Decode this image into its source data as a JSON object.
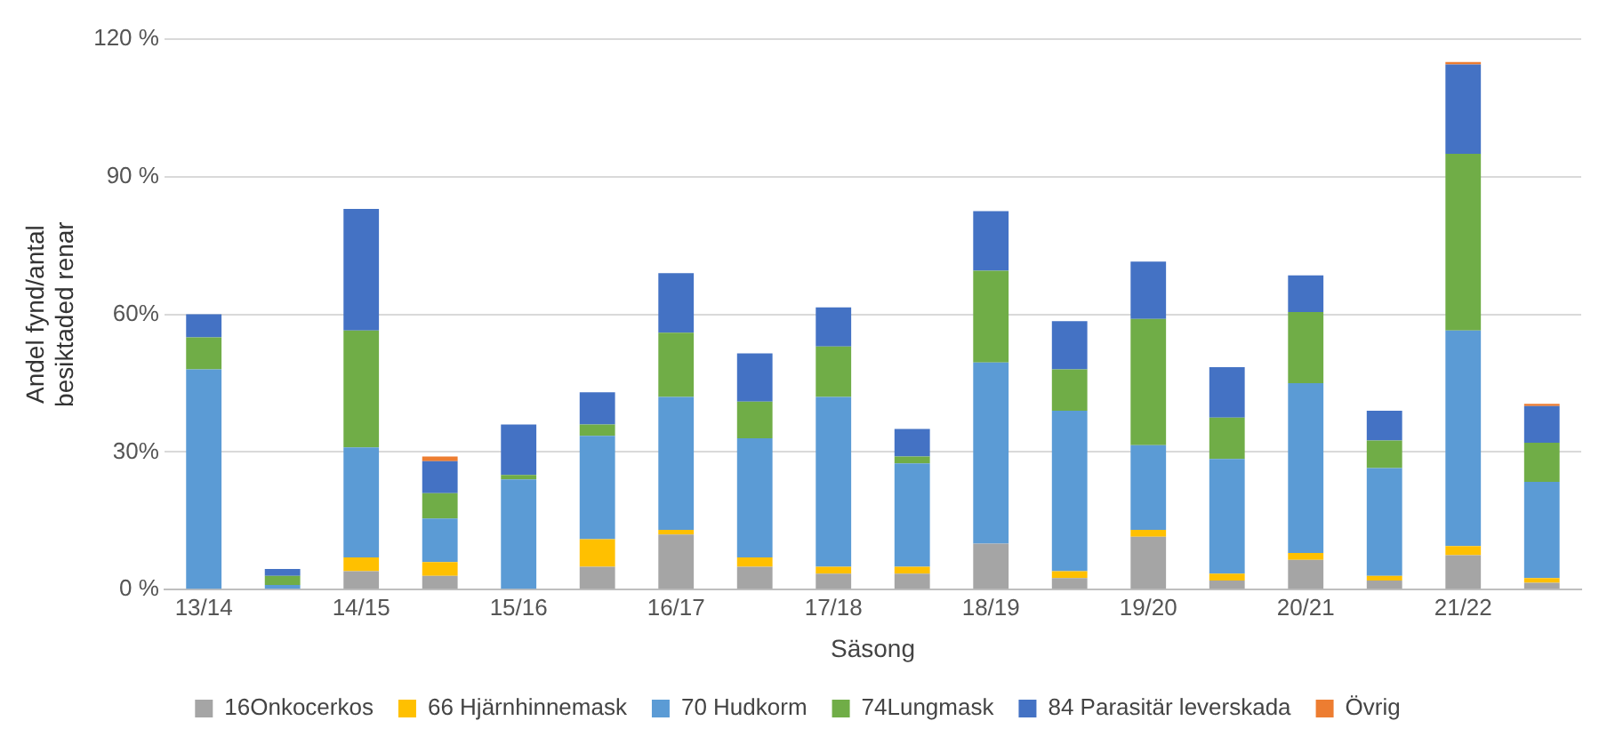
{
  "chart_data": {
    "type": "bar",
    "stacked": true,
    "xlabel": "Säsong",
    "ylabel": "Andel fynd/antal\nbesiktaded renar",
    "categories": [
      "13/14",
      null,
      "14/15",
      null,
      "15/16",
      null,
      "16/17",
      null,
      "17/18",
      null,
      "18/19",
      null,
      "19/20",
      null,
      "20/21",
      null,
      "21/22",
      null
    ],
    "ylim": [
      0,
      120
    ],
    "yticks": [
      {
        "value": 0,
        "label": "0 %"
      },
      {
        "value": 30,
        "label": "30%"
      },
      {
        "value": 60,
        "label": "60%"
      },
      {
        "value": 90,
        "label": "90 %"
      },
      {
        "value": 120,
        "label": "120 %"
      }
    ],
    "grid": "y",
    "legend": "bottom",
    "series": [
      {
        "name": "16Onkocerkos",
        "color": "#a5a5a5",
        "values": [
          0,
          0,
          4,
          3,
          0,
          5,
          12,
          5,
          3.5,
          3.5,
          10,
          2.5,
          11.5,
          2,
          6.5,
          2,
          7.5,
          1.5
        ]
      },
      {
        "name": "66 Hjärnhinnemask",
        "color": "#ffc000",
        "values": [
          0,
          0,
          3,
          3,
          0,
          6,
          1,
          2,
          1.5,
          1.5,
          0,
          1.5,
          1.5,
          1.5,
          1.5,
          1,
          2,
          1
        ]
      },
      {
        "name": "70 Hudkorm",
        "color": "#5b9bd5",
        "values": [
          48,
          1,
          24,
          9.5,
          24,
          22.5,
          29,
          26,
          37,
          22.5,
          39.5,
          35,
          18.5,
          25,
          37,
          23.5,
          47,
          21
        ]
      },
      {
        "name": "74Lungmask",
        "color": "#70ad47",
        "values": [
          7,
          2,
          25.5,
          5.5,
          1,
          2.5,
          14,
          8,
          11,
          1.5,
          20,
          9,
          27.5,
          9,
          15.5,
          6,
          38.5,
          8.5
        ]
      },
      {
        "name": "84 Parasitär leverskada",
        "color": "#4472c4",
        "values": [
          5,
          1.5,
          26.5,
          7,
          11,
          7,
          13,
          10.5,
          8.5,
          6,
          13,
          10.5,
          12.5,
          11,
          8,
          6.5,
          19.5,
          8
        ]
      },
      {
        "name": "Övrig",
        "color": "#ed7d31",
        "values": [
          0,
          0,
          0,
          1,
          0,
          0,
          0,
          0,
          0,
          0,
          0,
          0,
          0,
          0,
          0,
          0,
          0.5,
          0.5
        ]
      }
    ]
  }
}
